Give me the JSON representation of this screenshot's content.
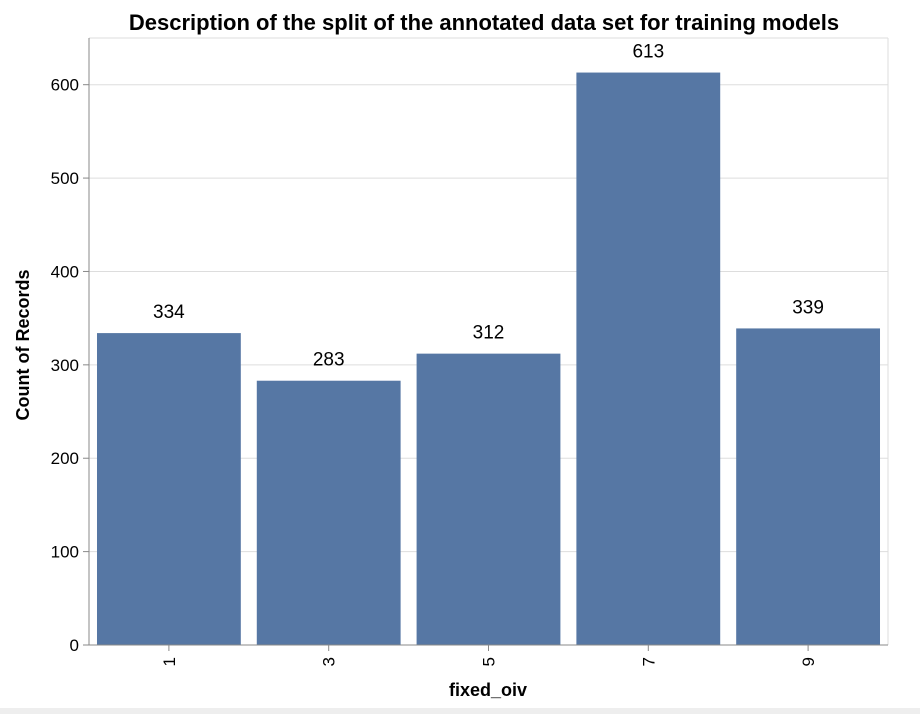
{
  "chart_data": {
    "type": "bar",
    "title": "Description of the split of the annotated data set for training models",
    "xlabel": "fixed_oiv",
    "ylabel": "Count of Records",
    "categories": [
      "1",
      "3",
      "5",
      "7",
      "9"
    ],
    "values": [
      334,
      283,
      312,
      613,
      339
    ],
    "yticks": [
      "0",
      "100",
      "200",
      "300",
      "400",
      "500",
      "600"
    ],
    "ylim": [
      0,
      650
    ],
    "grid": true,
    "bar_color": "#5677a4"
  }
}
